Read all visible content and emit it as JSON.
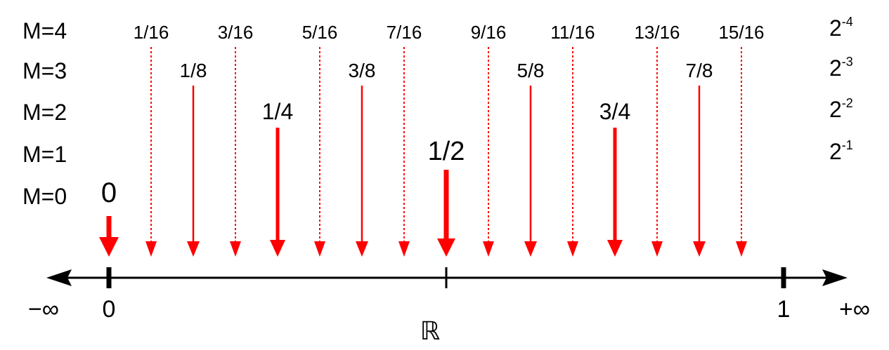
{
  "levels": [
    {
      "label": "M=0",
      "step": ""
    },
    {
      "label": "M=1",
      "step": {
        "base": "2",
        "exp": "-1"
      }
    },
    {
      "label": "M=2",
      "step": {
        "base": "2",
        "exp": "-2"
      }
    },
    {
      "label": "M=3",
      "step": {
        "base": "2",
        "exp": "-3"
      }
    },
    {
      "label": "M=4",
      "step": {
        "base": "2",
        "exp": "-4"
      }
    }
  ],
  "arrows": [
    {
      "label": "0",
      "value": 0,
      "level": 0
    },
    {
      "label": "1/16",
      "value": 0.0625,
      "level": 4
    },
    {
      "label": "1/8",
      "value": 0.125,
      "level": 3
    },
    {
      "label": "3/16",
      "value": 0.1875,
      "level": 4
    },
    {
      "label": "1/4",
      "value": 0.25,
      "level": 2
    },
    {
      "label": "5/16",
      "value": 0.3125,
      "level": 4
    },
    {
      "label": "3/8",
      "value": 0.375,
      "level": 3
    },
    {
      "label": "7/16",
      "value": 0.4375,
      "level": 4
    },
    {
      "label": "1/2",
      "value": 0.5,
      "level": 1
    },
    {
      "label": "9/16",
      "value": 0.5625,
      "level": 4
    },
    {
      "label": "5/8",
      "value": 0.625,
      "level": 3
    },
    {
      "label": "11/16",
      "value": 0.6875,
      "level": 4
    },
    {
      "label": "3/4",
      "value": 0.75,
      "level": 2
    },
    {
      "label": "13/16",
      "value": 0.8125,
      "level": 4
    },
    {
      "label": "7/8",
      "value": 0.875,
      "level": 3
    },
    {
      "label": "15/16",
      "value": 0.9375,
      "level": 4
    }
  ],
  "axis": {
    "name": "ℝ",
    "left_end": "−∞",
    "right_end": "+∞",
    "ticks": [
      {
        "label": "0",
        "value": 0,
        "major": true
      },
      {
        "label": "",
        "value": 0.5,
        "major": false
      },
      {
        "label": "1",
        "value": 1,
        "major": true
      }
    ]
  },
  "colors": {
    "arrow": "#ff0000",
    "axis": "#000000"
  }
}
